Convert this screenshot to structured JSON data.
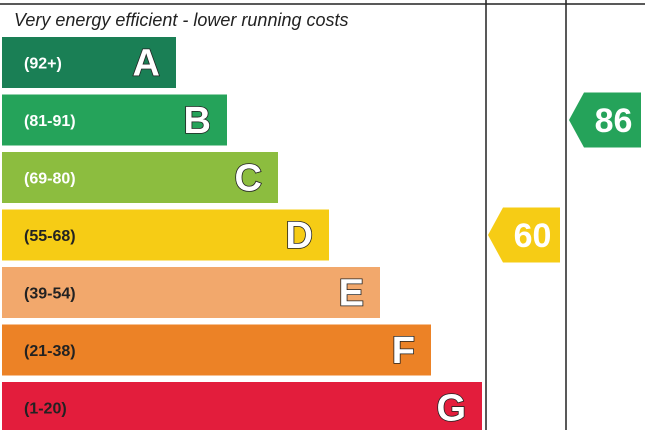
{
  "chart_data": {
    "type": "bar",
    "title": "Very energy efficient - lower running costs",
    "bands": [
      {
        "letter": "A",
        "range": "(92+)",
        "color": "#1a7f55"
      },
      {
        "letter": "B",
        "range": "(81-91)",
        "color": "#25a35a"
      },
      {
        "letter": "C",
        "range": "(69-80)",
        "color": "#8cbd3f"
      },
      {
        "letter": "D",
        "range": "(55-68)",
        "color": "#f6cc15"
      },
      {
        "letter": "E",
        "range": "(39-54)",
        "color": "#f2a86c"
      },
      {
        "letter": "F",
        "range": "(21-38)",
        "color": "#ec8226"
      },
      {
        "letter": "G",
        "range": "(1-20)",
        "color": "#e31d3c"
      }
    ],
    "current": {
      "value": "60",
      "band": "D",
      "color": "#f6cc15"
    },
    "potential": {
      "value": "86",
      "band": "B",
      "color": "#25a35a"
    }
  }
}
